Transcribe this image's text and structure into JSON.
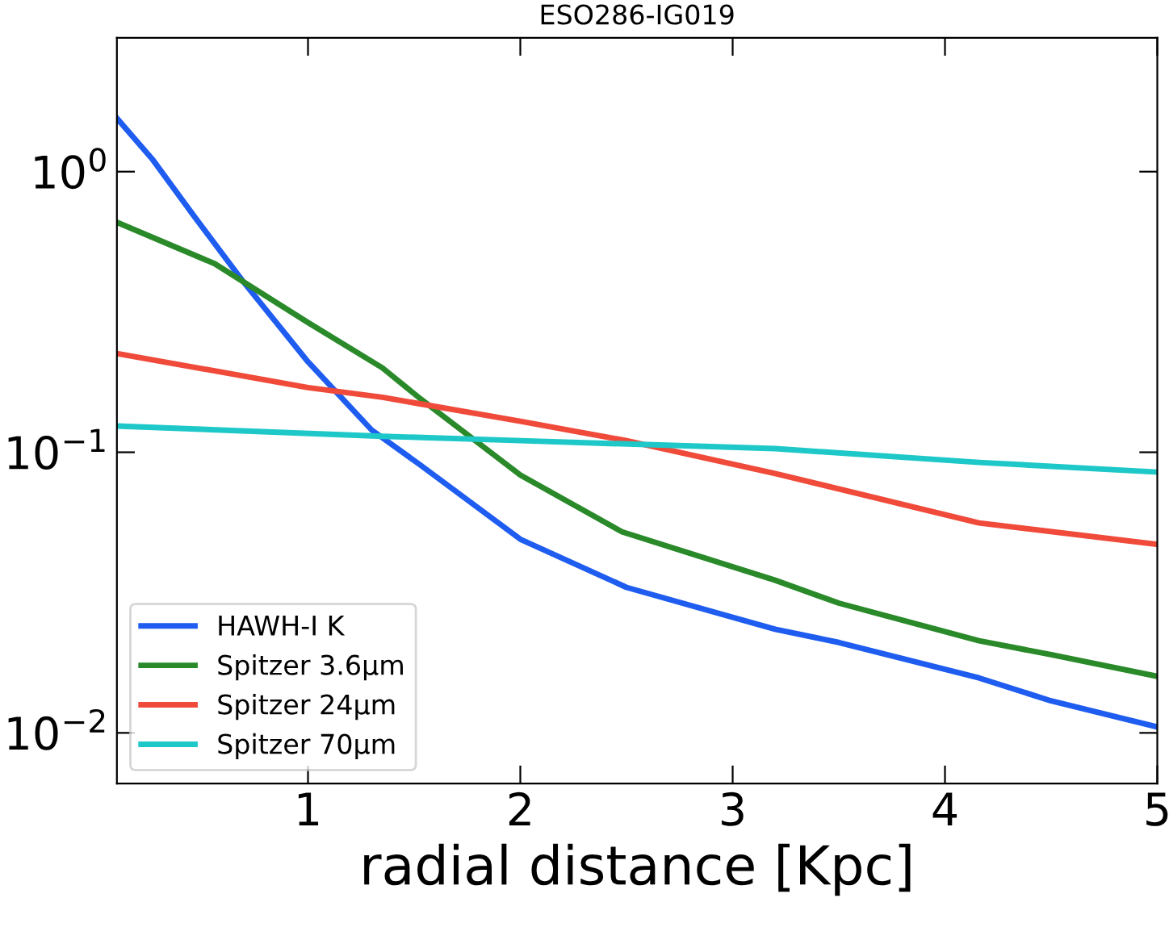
{
  "chart_data": {
    "type": "line",
    "title": "ESO286-IG019",
    "xlabel": "radial distance [Kpc]",
    "log": "y",
    "grid": false,
    "legend": "bottom left",
    "marker": "none",
    "line_style": "solid",
    "xlim": [
      0.1,
      5
    ],
    "xticks": [
      1,
      2,
      3,
      4,
      5
    ],
    "ylim": [
      0.0066,
      3
    ],
    "yticks": [
      {
        "value": 1,
        "label": "10$^{0}$"
      },
      {
        "value": 0.1,
        "label": "10$^{−1}$"
      },
      {
        "value": 0.01,
        "label": "10$^{−2}$"
      }
    ],
    "series": [
      {
        "name": "HAWH-I K",
        "color": "#1f5cf0",
        "x": [
          0.1,
          0.27,
          0.46,
          0.69,
          1.0,
          1.3,
          1.53,
          2.0,
          2.5,
          3.2,
          3.5,
          4.16,
          4.5,
          5.0
        ],
        "values": [
          1.55,
          1.1,
          0.7,
          0.41,
          0.21,
          0.12,
          0.09,
          0.049,
          0.033,
          0.0234,
          0.021,
          0.0157,
          0.013,
          0.0105
        ]
      },
      {
        "name": "Spitzer 3.6μm",
        "color": "#2a8a2a",
        "x": [
          0.1,
          0.56,
          1.0,
          1.35,
          1.53,
          2.0,
          2.48,
          3.2,
          3.5,
          4.16,
          4.5,
          5.0
        ],
        "values": [
          0.66,
          0.47,
          0.29,
          0.2,
          0.155,
          0.083,
          0.052,
          0.035,
          0.029,
          0.0213,
          0.019,
          0.0159
        ]
      },
      {
        "name": "Spitzer 24μm",
        "color": "#f04a3a",
        "x": [
          0.1,
          1.0,
          1.35,
          2.0,
          2.5,
          3.2,
          4.16,
          5.0
        ],
        "values": [
          0.225,
          0.17,
          0.157,
          0.129,
          0.11,
          0.084,
          0.056,
          0.047
        ]
      },
      {
        "name": "Spitzer 70μm",
        "color": "#1ec8c8",
        "x": [
          0.1,
          1.35,
          2.0,
          3.2,
          4.16,
          5.0
        ],
        "values": [
          0.124,
          0.114,
          0.11,
          0.103,
          0.092,
          0.085
        ]
      }
    ]
  }
}
